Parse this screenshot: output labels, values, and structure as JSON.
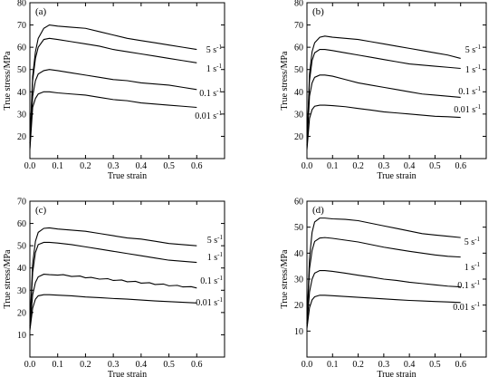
{
  "chart_data": [
    {
      "type": "line",
      "panel_label": "(a)",
      "xlabel": "True strain",
      "ylabel": "True stress/MPa",
      "xlim": [
        0.0,
        0.7
      ],
      "ylim": [
        10,
        80
      ],
      "x_ticks": [
        "0.0",
        "0.1",
        "0.2",
        "0.3",
        "0.4",
        "0.5",
        "0.6"
      ],
      "y_ticks": [
        "20",
        "30",
        "40",
        "50",
        "60",
        "70",
        "80"
      ],
      "grid": false,
      "series": [
        {
          "name": "5 s",
          "superscript": "-1",
          "x": [
            0.0,
            0.01,
            0.02,
            0.03,
            0.05,
            0.07,
            0.1,
            0.15,
            0.2,
            0.25,
            0.3,
            0.35,
            0.4,
            0.45,
            0.5,
            0.55,
            0.6
          ],
          "y": [
            17,
            47,
            58,
            64,
            68.5,
            70,
            69.5,
            69,
            68.5,
            67,
            65.5,
            64,
            63,
            62,
            61,
            60,
            59
          ]
        },
        {
          "name": "1 s",
          "superscript": "-1",
          "x": [
            0.0,
            0.01,
            0.02,
            0.03,
            0.05,
            0.07,
            0.1,
            0.15,
            0.2,
            0.25,
            0.3,
            0.35,
            0.4,
            0.45,
            0.5,
            0.55,
            0.6
          ],
          "y": [
            17,
            45,
            55,
            60,
            63.5,
            64,
            63.5,
            62.5,
            61.5,
            60.5,
            59,
            58,
            57,
            56,
            55,
            54,
            53
          ]
        },
        {
          "name": "0.1 s",
          "superscript": "-1",
          "x": [
            0.0,
            0.01,
            0.02,
            0.03,
            0.05,
            0.07,
            0.1,
            0.15,
            0.2,
            0.25,
            0.3,
            0.35,
            0.4,
            0.45,
            0.5,
            0.55,
            0.6
          ],
          "y": [
            15,
            38,
            45,
            48,
            49.5,
            50,
            49.5,
            48.5,
            47.5,
            46.5,
            45.5,
            45,
            44,
            43.5,
            43,
            42,
            41
          ]
        },
        {
          "name": "0.01 s",
          "superscript": "-1",
          "x": [
            0.0,
            0.01,
            0.02,
            0.03,
            0.05,
            0.07,
            0.1,
            0.15,
            0.2,
            0.25,
            0.3,
            0.35,
            0.4,
            0.45,
            0.5,
            0.55,
            0.6
          ],
          "y": [
            14,
            33,
            37,
            39,
            40,
            40,
            39.5,
            39,
            38.5,
            37.5,
            36.5,
            36,
            35,
            34.5,
            34,
            33.5,
            33
          ]
        }
      ]
    },
    {
      "type": "line",
      "panel_label": "(b)",
      "xlabel": "True strain",
      "ylabel": "True stress/MPa",
      "xlim": [
        0.0,
        0.7
      ],
      "ylim": [
        10,
        80
      ],
      "x_ticks": [
        "0.0",
        "0.1",
        "0.2",
        "0.3",
        "0.4",
        "0.5",
        "0.6"
      ],
      "y_ticks": [
        "20",
        "30",
        "40",
        "50",
        "60",
        "70",
        "80"
      ],
      "grid": false,
      "series": [
        {
          "name": "5 s",
          "superscript": "-1",
          "x": [
            0.0,
            0.01,
            0.02,
            0.03,
            0.05,
            0.07,
            0.1,
            0.15,
            0.2,
            0.25,
            0.3,
            0.35,
            0.4,
            0.45,
            0.5,
            0.55,
            0.6
          ],
          "y": [
            16,
            48,
            58,
            62,
            64.5,
            65,
            64.5,
            64,
            63.5,
            62.5,
            61.5,
            60.5,
            59.5,
            58.5,
            57.5,
            56.5,
            55
          ]
        },
        {
          "name": "1 s",
          "superscript": "-1",
          "x": [
            0.0,
            0.01,
            0.02,
            0.03,
            0.05,
            0.07,
            0.1,
            0.15,
            0.2,
            0.25,
            0.3,
            0.35,
            0.4,
            0.45,
            0.5,
            0.55,
            0.6
          ],
          "y": [
            16,
            45,
            54,
            57.5,
            59,
            59,
            58.5,
            57.5,
            56.5,
            55.5,
            54.5,
            53.5,
            52.5,
            52,
            51.5,
            51,
            50.5
          ]
        },
        {
          "name": "0.1 s",
          "superscript": "-1",
          "x": [
            0.0,
            0.01,
            0.02,
            0.03,
            0.05,
            0.07,
            0.1,
            0.15,
            0.2,
            0.25,
            0.3,
            0.35,
            0.4,
            0.45,
            0.5,
            0.55,
            0.6
          ],
          "y": [
            15,
            38,
            44,
            46.5,
            47.5,
            47.5,
            47,
            45.5,
            44,
            43,
            42,
            41,
            40,
            39,
            38.5,
            38,
            37.5
          ]
        },
        {
          "name": "0.01 s",
          "superscript": "-1",
          "x": [
            0.0,
            0.01,
            0.02,
            0.03,
            0.05,
            0.07,
            0.1,
            0.15,
            0.2,
            0.25,
            0.3,
            0.35,
            0.4,
            0.45,
            0.5,
            0.55,
            0.6
          ],
          "y": [
            14,
            28,
            32,
            33.5,
            34,
            34,
            33.8,
            33.3,
            32.5,
            31.8,
            31,
            30.5,
            30,
            29.5,
            29,
            28.8,
            28.5
          ]
        }
      ]
    },
    {
      "type": "line",
      "panel_label": "(c)",
      "xlabel": "True strain",
      "ylabel": "True stress/MPa",
      "xlim": [
        0.0,
        0.7
      ],
      "ylim": [
        0,
        70
      ],
      "x_ticks": [
        "0.0",
        "0.1",
        "0.2",
        "0.3",
        "0.4",
        "0.5",
        "0.6"
      ],
      "y_ticks": [
        "10",
        "20",
        "30",
        "40",
        "50",
        "60",
        "70"
      ],
      "grid": false,
      "series": [
        {
          "name": "5 s",
          "superscript": "-1",
          "x": [
            0.0,
            0.01,
            0.02,
            0.03,
            0.05,
            0.07,
            0.1,
            0.15,
            0.2,
            0.25,
            0.3,
            0.35,
            0.4,
            0.45,
            0.5,
            0.55,
            0.6
          ],
          "y": [
            14,
            42,
            52,
            56,
            57.8,
            58,
            57.5,
            57,
            56.5,
            55.5,
            54.5,
            53.5,
            53,
            52,
            51,
            50.5,
            50
          ]
        },
        {
          "name": "1 s",
          "superscript": "-1",
          "x": [
            0.0,
            0.01,
            0.02,
            0.03,
            0.05,
            0.07,
            0.1,
            0.15,
            0.2,
            0.25,
            0.3,
            0.35,
            0.4,
            0.45,
            0.5,
            0.55,
            0.6
          ],
          "y": [
            14,
            38,
            47,
            50.5,
            51.5,
            51.5,
            51.2,
            50.5,
            49.5,
            48.5,
            47.5,
            46.5,
            45.5,
            44.5,
            43.5,
            43,
            42.5
          ]
        },
        {
          "name": "0.1 s",
          "superscript": "-1",
          "x": [
            0.0,
            0.01,
            0.02,
            0.03,
            0.05,
            0.07,
            0.1,
            0.12,
            0.15,
            0.18,
            0.2,
            0.22,
            0.25,
            0.28,
            0.3,
            0.33,
            0.35,
            0.38,
            0.4,
            0.43,
            0.45,
            0.48,
            0.5,
            0.53,
            0.55,
            0.58,
            0.6
          ],
          "y": [
            13,
            28,
            33.5,
            36,
            37.2,
            37,
            36.8,
            37,
            36.2,
            36.4,
            35.6,
            35.8,
            35,
            35.2,
            34.4,
            34.6,
            33.8,
            34,
            33.2,
            33.4,
            32.6,
            32.8,
            32,
            32.2,
            31.5,
            31.6,
            31
          ]
        },
        {
          "name": "0.01 s",
          "superscript": "-1",
          "x": [
            0.0,
            0.01,
            0.02,
            0.03,
            0.05,
            0.07,
            0.1,
            0.15,
            0.2,
            0.25,
            0.3,
            0.35,
            0.4,
            0.45,
            0.5,
            0.55,
            0.6
          ],
          "y": [
            12,
            22,
            26,
            27.5,
            28,
            28,
            27.8,
            27.5,
            27,
            26.7,
            26.3,
            26,
            25.6,
            25.2,
            24.9,
            24.6,
            24.3
          ]
        }
      ]
    },
    {
      "type": "line",
      "panel_label": "(d)",
      "xlabel": "True strain",
      "ylabel": "True stress/MPa",
      "xlim": [
        0.0,
        0.7
      ],
      "ylim": [
        0,
        60
      ],
      "x_ticks": [
        "0.0",
        "0.1",
        "0.2",
        "0.3",
        "0.4",
        "0.5",
        "0.6"
      ],
      "y_ticks": [
        "10",
        "20",
        "30",
        "40",
        "50",
        "60"
      ],
      "grid": false,
      "series": [
        {
          "name": "5 s",
          "superscript": "-1",
          "x": [
            0.0,
            0.01,
            0.02,
            0.03,
            0.05,
            0.07,
            0.1,
            0.15,
            0.2,
            0.25,
            0.3,
            0.35,
            0.4,
            0.45,
            0.5,
            0.55,
            0.6
          ],
          "y": [
            13,
            38,
            48,
            52,
            53.5,
            53.5,
            53.2,
            53,
            52.5,
            51.5,
            50.5,
            49.5,
            48.5,
            47.5,
            47,
            46.5,
            46
          ]
        },
        {
          "name": "1 s",
          "superscript": "-1",
          "x": [
            0.0,
            0.01,
            0.02,
            0.03,
            0.05,
            0.07,
            0.1,
            0.15,
            0.2,
            0.25,
            0.3,
            0.35,
            0.4,
            0.45,
            0.5,
            0.55,
            0.6
          ],
          "y": [
            13,
            34,
            41,
            44.5,
            45.8,
            46,
            45.7,
            45,
            44.3,
            43.3,
            42.3,
            41.5,
            40.7,
            40,
            39.3,
            38.8,
            38.5
          ]
        },
        {
          "name": "0.1 s",
          "superscript": "-1",
          "x": [
            0.0,
            0.01,
            0.02,
            0.03,
            0.05,
            0.07,
            0.1,
            0.15,
            0.2,
            0.25,
            0.3,
            0.35,
            0.4,
            0.45,
            0.5,
            0.55,
            0.6
          ],
          "y": [
            12,
            25,
            30,
            32.3,
            33.3,
            33.3,
            33,
            32.3,
            31.5,
            30.8,
            30,
            29.5,
            28.8,
            28.3,
            27.8,
            27.3,
            27
          ]
        },
        {
          "name": "0.01 s",
          "superscript": "-1",
          "x": [
            0.0,
            0.01,
            0.02,
            0.03,
            0.05,
            0.07,
            0.1,
            0.15,
            0.2,
            0.25,
            0.3,
            0.35,
            0.4,
            0.45,
            0.5,
            0.55,
            0.6
          ],
          "y": [
            11,
            19,
            22,
            23.2,
            23.8,
            23.8,
            23.6,
            23.3,
            23,
            22.7,
            22.4,
            22.1,
            21.8,
            21.6,
            21.4,
            21.2,
            21
          ]
        }
      ]
    }
  ]
}
